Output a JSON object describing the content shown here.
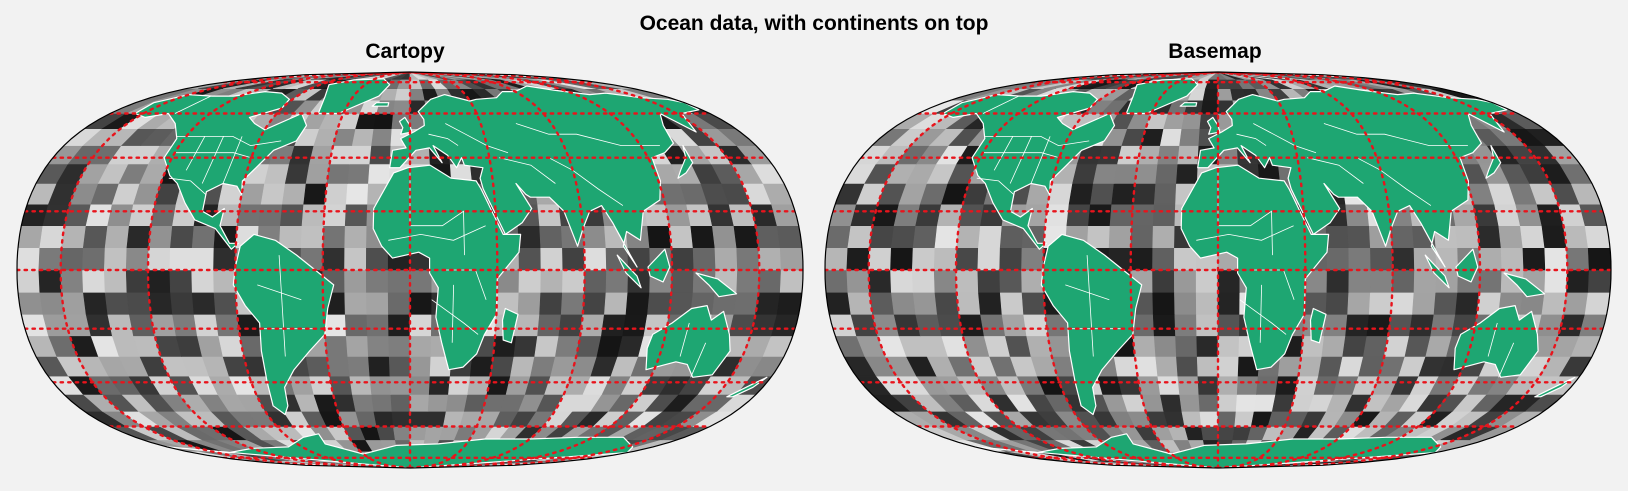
{
  "figure": {
    "title": "Ocean data, with continents on top"
  },
  "panels": [
    {
      "title": "Cartopy"
    },
    {
      "title": "Basemap"
    }
  ],
  "style": {
    "background": "#f2f2f2",
    "land_color": "#1ea672",
    "border_color": "#ffffff",
    "gridline_color": "#e8141c",
    "outline_color": "#000000",
    "colormap": "greys"
  },
  "map_data": {
    "projection": "robinson",
    "layers": [
      "gray-data-cells",
      "land",
      "political-borders",
      "dotted-graticule"
    ],
    "graticule": {
      "lat_step_deg": 20,
      "lon_step_deg": 40
    }
  }
}
